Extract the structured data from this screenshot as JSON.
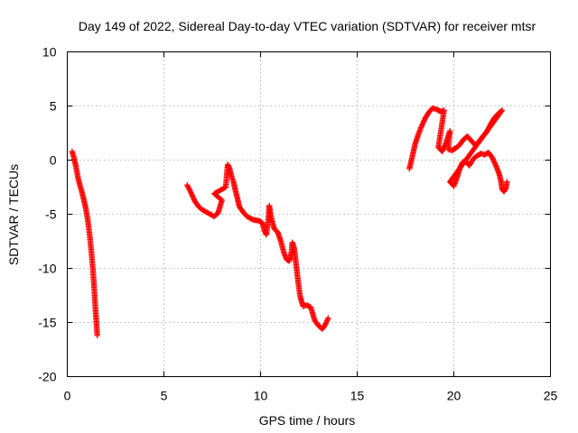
{
  "chart_data": {
    "type": "scatter",
    "title": "Day 149 of 2022, Sidereal Day-to-day VTEC variation (SDTVAR) for receiver mtsr",
    "xlabel": "GPS time / hours",
    "ylabel": "SDTVAR / TECUs",
    "xlim": [
      0,
      25
    ],
    "ylim": [
      -20,
      10
    ],
    "xticks": [
      0,
      5,
      10,
      15,
      20,
      25
    ],
    "yticks": [
      -20,
      -15,
      -10,
      -5,
      0,
      5,
      10
    ],
    "grid": true,
    "marker": "+",
    "color": "#ff0000",
    "series": [
      {
        "name": "SDTVAR",
        "segments": [
          [
            [
              0.25,
              0.8
            ],
            [
              0.35,
              0.2
            ],
            [
              0.45,
              -0.6
            ],
            [
              0.55,
              -1.6
            ],
            [
              0.65,
              -2.3
            ],
            [
              0.75,
              -2.9
            ],
            [
              0.85,
              -3.6
            ],
            [
              0.95,
              -4.4
            ],
            [
              1.05,
              -5.4
            ],
            [
              1.15,
              -6.8
            ],
            [
              1.25,
              -8.5
            ],
            [
              1.33,
              -10.2
            ],
            [
              1.4,
              -12.0
            ],
            [
              1.46,
              -13.8
            ],
            [
              1.52,
              -15.3
            ],
            [
              1.55,
              -16.2
            ]
          ],
          [
            [
              6.2,
              -2.3
            ],
            [
              6.4,
              -3.0
            ],
            [
              6.6,
              -3.8
            ],
            [
              6.8,
              -4.3
            ],
            [
              7.0,
              -4.6
            ],
            [
              7.3,
              -4.9
            ],
            [
              7.6,
              -5.2
            ],
            [
              7.8,
              -4.9
            ],
            [
              7.9,
              -4.3
            ],
            [
              8.0,
              -3.7
            ],
            [
              7.6,
              -3.1
            ],
            [
              7.9,
              -2.8
            ],
            [
              8.2,
              -2.5
            ],
            [
              8.3,
              -0.4
            ],
            [
              8.4,
              -0.8
            ],
            [
              8.5,
              -1.5
            ],
            [
              8.6,
              -2.0
            ],
            [
              8.7,
              -2.8
            ],
            [
              8.8,
              -3.5
            ],
            [
              8.9,
              -4.3
            ],
            [
              9.1,
              -4.8
            ],
            [
              9.3,
              -5.2
            ],
            [
              9.6,
              -5.5
            ],
            [
              9.9,
              -5.6
            ],
            [
              10.1,
              -5.8
            ],
            [
              10.2,
              -6.5
            ],
            [
              10.3,
              -6.9
            ],
            [
              10.4,
              -5.5
            ],
            [
              10.45,
              -4.2
            ],
            [
              10.55,
              -5.3
            ],
            [
              10.7,
              -6.3
            ],
            [
              10.9,
              -6.7
            ],
            [
              11.05,
              -7.5
            ],
            [
              11.2,
              -8.5
            ],
            [
              11.35,
              -9.2
            ],
            [
              11.5,
              -9.3
            ],
            [
              11.6,
              -8.5
            ],
            [
              11.65,
              -7.6
            ],
            [
              11.75,
              -8.2
            ],
            [
              11.85,
              -9.8
            ],
            [
              11.95,
              -11.3
            ],
            [
              12.05,
              -12.6
            ],
            [
              12.2,
              -13.5
            ],
            [
              12.4,
              -13.4
            ],
            [
              12.6,
              -13.6
            ],
            [
              12.8,
              -14.8
            ],
            [
              13.0,
              -15.3
            ],
            [
              13.2,
              -15.6
            ],
            [
              13.35,
              -15.2
            ],
            [
              13.5,
              -14.6
            ]
          ],
          [
            [
              17.7,
              -0.8
            ],
            [
              17.85,
              0.3
            ],
            [
              18.0,
              1.5
            ],
            [
              18.15,
              2.3
            ],
            [
              18.3,
              3.0
            ],
            [
              18.5,
              3.8
            ],
            [
              18.7,
              4.4
            ],
            [
              18.9,
              4.8
            ],
            [
              19.1,
              4.7
            ],
            [
              19.3,
              4.5
            ],
            [
              19.5,
              4.6
            ],
            [
              19.2,
              1.2
            ],
            [
              19.4,
              0.8
            ],
            [
              19.6,
              1.6
            ],
            [
              19.8,
              2.7
            ],
            [
              19.7,
              1.0
            ],
            [
              19.9,
              0.9
            ],
            [
              20.1,
              1.1
            ],
            [
              20.3,
              1.4
            ],
            [
              20.5,
              1.9
            ],
            [
              20.7,
              2.2
            ],
            [
              20.9,
              1.8
            ],
            [
              21.1,
              1.4
            ],
            [
              21.3,
              1.7
            ],
            [
              21.5,
              2.2
            ],
            [
              21.7,
              2.6
            ],
            [
              21.9,
              3.3
            ],
            [
              22.1,
              3.9
            ],
            [
              22.3,
              4.3
            ],
            [
              22.5,
              4.6
            ],
            [
              19.8,
              -2.0
            ],
            [
              20.0,
              -2.4
            ],
            [
              20.15,
              -1.7
            ],
            [
              20.3,
              -0.8
            ],
            [
              20.45,
              -0.2
            ],
            [
              20.6,
              -0.1
            ],
            [
              20.8,
              -0.5
            ],
            [
              21.0,
              0.1
            ],
            [
              21.2,
              0.4
            ],
            [
              21.4,
              0.6
            ],
            [
              21.6,
              0.5
            ],
            [
              21.8,
              0.7
            ],
            [
              22.0,
              0.2
            ],
            [
              22.2,
              -0.6
            ],
            [
              22.35,
              -1.3
            ],
            [
              22.45,
              -2.0
            ],
            [
              22.5,
              -2.7
            ],
            [
              22.6,
              -2.9
            ],
            [
              22.7,
              -2.6
            ],
            [
              22.75,
              -2.0
            ]
          ]
        ]
      }
    ]
  }
}
